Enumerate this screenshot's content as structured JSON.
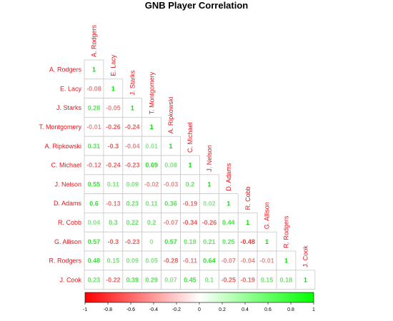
{
  "chart_data": {
    "type": "heatmap",
    "subtype": "correlation-lower-triangle",
    "title": "GNB Player Correlation",
    "players": [
      "A. Rodgers",
      "E. Lacy",
      "J. Starks",
      "T. Montgomery",
      "A. Ripkowski",
      "C. Michael",
      "J. Nelson",
      "D. Adams",
      "R. Cobb",
      "G. Allison",
      "R. Rodgers",
      "J. Cook"
    ],
    "matrix": [
      [
        "1"
      ],
      [
        "-0.08",
        "1"
      ],
      [
        "0.28",
        "-0.05",
        "1"
      ],
      [
        "-0.01",
        "-0.26",
        "-0.24",
        "1"
      ],
      [
        "0.31",
        "-0.3",
        "-0.04",
        "0.01",
        "1"
      ],
      [
        "-0.12",
        "-0.24",
        "-0.23",
        "0.69",
        "0.08",
        "1"
      ],
      [
        "0.55",
        "0.11",
        "0.09",
        "-0.02",
        "-0.03",
        "0.2",
        "1"
      ],
      [
        "0.6",
        "-0.13",
        "0.23",
        "0.11",
        "0.36",
        "-0.19",
        "0.02",
        "1"
      ],
      [
        "0.04",
        "0.3",
        "0.22",
        "0.2",
        "-0.07",
        "-0.34",
        "-0.26",
        "0.44",
        "1"
      ],
      [
        "0.57",
        "-0.3",
        "-0.23",
        "0",
        "0.57",
        "0.18",
        "0.21",
        "0.25",
        "-0.48",
        "1"
      ],
      [
        "0.48",
        "0.15",
        "0.09",
        "0.05",
        "-0.28",
        "-0.11",
        "0.64",
        "-0.07",
        "-0.04",
        "-0.01",
        "1"
      ],
      [
        "0.23",
        "-0.22",
        "0.39",
        "0.29",
        "0.07",
        "0.45",
        "0.1",
        "-0.25",
        "-0.19",
        "0.15",
        "0.18",
        "1"
      ]
    ],
    "color_scale": {
      "min": -1,
      "max": 1,
      "low_color": "#ff0000",
      "mid_color": "#ffffff",
      "high_color": "#00ff00"
    },
    "colorbar_ticks": [
      "-1",
      "-0.8",
      "-0.6",
      "-0.4",
      "-0.2",
      "0",
      "0.2",
      "0.4",
      "0.6",
      "0.8",
      "1"
    ],
    "label_color": "#e8141c"
  }
}
